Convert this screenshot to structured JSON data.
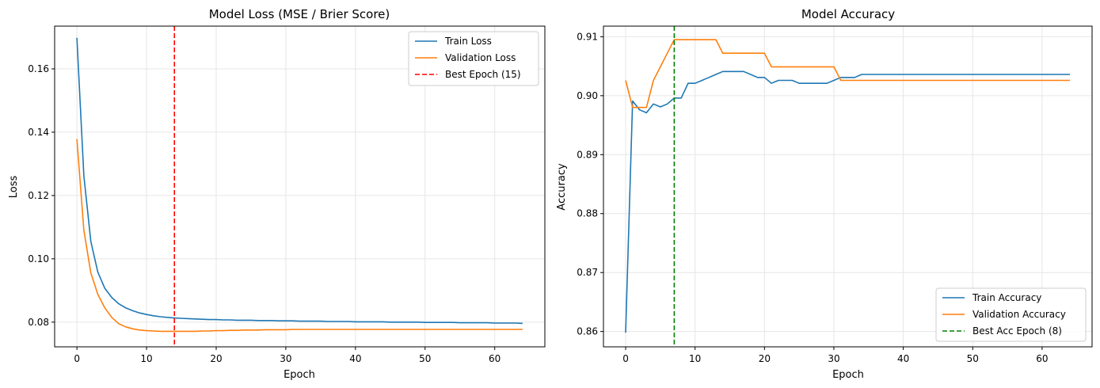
{
  "chart_data": [
    {
      "type": "line",
      "title": "Model Loss (MSE / Brier Score)",
      "xlabel": "Epoch",
      "ylabel": "Loss",
      "xlim": [
        -3.2,
        67.2
      ],
      "ylim": [
        0.0722,
        0.1735
      ],
      "xticks": [
        0,
        10,
        20,
        30,
        40,
        50,
        60
      ],
      "xtick_labels": [
        "0",
        "10",
        "20",
        "30",
        "40",
        "50",
        "60"
      ],
      "yticks": [
        0.08,
        0.1,
        0.12,
        0.14,
        0.16
      ],
      "ytick_labels": [
        "0.08",
        "0.10",
        "0.12",
        "0.14",
        "0.16"
      ],
      "grid": true,
      "legend_position": "top-right",
      "series": [
        {
          "name": "Train Loss",
          "color": "#1f77b4",
          "x": [
            0,
            1,
            2,
            3,
            4,
            5,
            6,
            7,
            8,
            9,
            10,
            11,
            12,
            13,
            14,
            15,
            16,
            17,
            18,
            19,
            20,
            21,
            22,
            23,
            24,
            25,
            26,
            27,
            28,
            29,
            30,
            31,
            32,
            33,
            34,
            35,
            36,
            37,
            38,
            39,
            40,
            41,
            42,
            43,
            44,
            45,
            46,
            47,
            48,
            49,
            50,
            51,
            52,
            53,
            54,
            55,
            56,
            57,
            58,
            59,
            60,
            61,
            62,
            63,
            64
          ],
          "y": [
            0.1698,
            0.1262,
            0.1055,
            0.0958,
            0.0907,
            0.0878,
            0.0858,
            0.0845,
            0.0836,
            0.0829,
            0.0824,
            0.082,
            0.0817,
            0.0815,
            0.0813,
            0.0812,
            0.0811,
            0.081,
            0.0809,
            0.0808,
            0.0808,
            0.0807,
            0.0807,
            0.0806,
            0.0806,
            0.0806,
            0.0805,
            0.0805,
            0.0805,
            0.0804,
            0.0804,
            0.0804,
            0.0803,
            0.0803,
            0.0803,
            0.0803,
            0.0802,
            0.0802,
            0.0802,
            0.0802,
            0.0801,
            0.0801,
            0.0801,
            0.0801,
            0.0801,
            0.08,
            0.08,
            0.08,
            0.08,
            0.08,
            0.0799,
            0.0799,
            0.0799,
            0.0799,
            0.0799,
            0.0798,
            0.0798,
            0.0798,
            0.0798,
            0.0798,
            0.0797,
            0.0797,
            0.0797,
            0.0797,
            0.0796
          ]
        },
        {
          "name": "Validation Loss",
          "color": "#ff7f0e",
          "x": [
            0,
            1,
            2,
            3,
            4,
            5,
            6,
            7,
            8,
            9,
            10,
            11,
            12,
            13,
            14,
            15,
            16,
            17,
            18,
            19,
            20,
            21,
            22,
            23,
            24,
            25,
            26,
            27,
            28,
            29,
            30,
            31,
            32,
            33,
            34,
            35,
            36,
            37,
            38,
            39,
            40,
            41,
            42,
            43,
            44,
            45,
            46,
            47,
            48,
            49,
            50,
            51,
            52,
            53,
            54,
            55,
            56,
            57,
            58,
            59,
            60,
            61,
            62,
            63,
            64
          ],
          "y": [
            0.1378,
            0.109,
            0.0955,
            0.0888,
            0.0845,
            0.0815,
            0.0795,
            0.0785,
            0.0779,
            0.0775,
            0.0773,
            0.0772,
            0.0771,
            0.0771,
            0.0771,
            0.0771,
            0.0771,
            0.0771,
            0.0772,
            0.0772,
            0.0773,
            0.0773,
            0.0774,
            0.0774,
            0.0775,
            0.0775,
            0.0775,
            0.0776,
            0.0776,
            0.0776,
            0.0776,
            0.0777,
            0.0777,
            0.0777,
            0.0777,
            0.0777,
            0.0777,
            0.0777,
            0.0777,
            0.0777,
            0.0777,
            0.0777,
            0.0777,
            0.0777,
            0.0777,
            0.0777,
            0.0777,
            0.0777,
            0.0777,
            0.0777,
            0.0777,
            0.0777,
            0.0777,
            0.0777,
            0.0777,
            0.0777,
            0.0777,
            0.0777,
            0.0777,
            0.0777,
            0.0777,
            0.0777,
            0.0777,
            0.0777,
            0.0777
          ]
        }
      ],
      "vline": {
        "name": "Best Epoch (15)",
        "x": 14,
        "color": "#ff0000"
      }
    },
    {
      "type": "line",
      "title": "Model Accuracy",
      "xlabel": "Epoch",
      "ylabel": "Accuracy",
      "xlim": [
        -3.2,
        67.2
      ],
      "ylim": [
        0.8574,
        0.9118
      ],
      "xticks": [
        0,
        10,
        20,
        30,
        40,
        50,
        60
      ],
      "xtick_labels": [
        "0",
        "10",
        "20",
        "30",
        "40",
        "50",
        "60"
      ],
      "yticks": [
        0.86,
        0.87,
        0.88,
        0.89,
        0.9,
        0.91
      ],
      "ytick_labels": [
        "0.86",
        "0.87",
        "0.88",
        "0.89",
        "0.90",
        "0.91"
      ],
      "grid": true,
      "legend_position": "bottom-right",
      "series": [
        {
          "name": "Train Accuracy",
          "color": "#1f77b4",
          "x": [
            0,
            1,
            2,
            3,
            4,
            5,
            6,
            7,
            8,
            9,
            10,
            11,
            12,
            13,
            14,
            15,
            16,
            17,
            18,
            19,
            20,
            21,
            22,
            23,
            24,
            25,
            26,
            27,
            28,
            29,
            30,
            31,
            32,
            33,
            34,
            35,
            36,
            37,
            38,
            39,
            40,
            41,
            42,
            43,
            44,
            45,
            46,
            47,
            48,
            49,
            50,
            51,
            52,
            53,
            54,
            55,
            56,
            57,
            58,
            59,
            60,
            61,
            62,
            63,
            64
          ],
          "y": [
            0.8598,
            0.8991,
            0.8976,
            0.8971,
            0.8986,
            0.8981,
            0.8986,
            0.8996,
            0.8996,
            0.9021,
            0.9021,
            0.9026,
            0.9031,
            0.9036,
            0.9041,
            0.9041,
            0.9041,
            0.9041,
            0.9036,
            0.9031,
            0.9031,
            0.9021,
            0.9026,
            0.9026,
            0.9026,
            0.9021,
            0.9021,
            0.9021,
            0.9021,
            0.9021,
            0.9026,
            0.9031,
            0.9031,
            0.9031,
            0.9036,
            0.9036,
            0.9036,
            0.9036,
            0.9036,
            0.9036,
            0.9036,
            0.9036,
            0.9036,
            0.9036,
            0.9036,
            0.9036,
            0.9036,
            0.9036,
            0.9036,
            0.9036,
            0.9036,
            0.9036,
            0.9036,
            0.9036,
            0.9036,
            0.9036,
            0.9036,
            0.9036,
            0.9036,
            0.9036,
            0.9036,
            0.9036,
            0.9036,
            0.9036,
            0.9036
          ]
        },
        {
          "name": "Validation Accuracy",
          "color": "#ff7f0e",
          "x": [
            0,
            1,
            2,
            3,
            4,
            5,
            6,
            7,
            8,
            9,
            10,
            11,
            12,
            13,
            14,
            15,
            16,
            17,
            18,
            19,
            20,
            21,
            22,
            23,
            24,
            25,
            26,
            27,
            28,
            29,
            30,
            31,
            32,
            33,
            34,
            35,
            36,
            37,
            38,
            39,
            40,
            41,
            42,
            43,
            44,
            45,
            46,
            47,
            48,
            49,
            50,
            51,
            52,
            53,
            54,
            55,
            56,
            57,
            58,
            59,
            60,
            61,
            62,
            63,
            64
          ],
          "y": [
            0.9026,
            0.898,
            0.898,
            0.898,
            0.9026,
            0.9049,
            0.9072,
            0.9095,
            0.9095,
            0.9095,
            0.9095,
            0.9095,
            0.9095,
            0.9095,
            0.9072,
            0.9072,
            0.9072,
            0.9072,
            0.9072,
            0.9072,
            0.9072,
            0.9049,
            0.9049,
            0.9049,
            0.9049,
            0.9049,
            0.9049,
            0.9049,
            0.9049,
            0.9049,
            0.9049,
            0.9026,
            0.9026,
            0.9026,
            0.9026,
            0.9026,
            0.9026,
            0.9026,
            0.9026,
            0.9026,
            0.9026,
            0.9026,
            0.9026,
            0.9026,
            0.9026,
            0.9026,
            0.9026,
            0.9026,
            0.9026,
            0.9026,
            0.9026,
            0.9026,
            0.9026,
            0.9026,
            0.9026,
            0.9026,
            0.9026,
            0.9026,
            0.9026,
            0.9026,
            0.9026,
            0.9026,
            0.9026,
            0.9026,
            0.9026
          ]
        }
      ],
      "vline": {
        "name": "Best Acc Epoch (8)",
        "x": 7,
        "color": "#008000"
      }
    }
  ]
}
